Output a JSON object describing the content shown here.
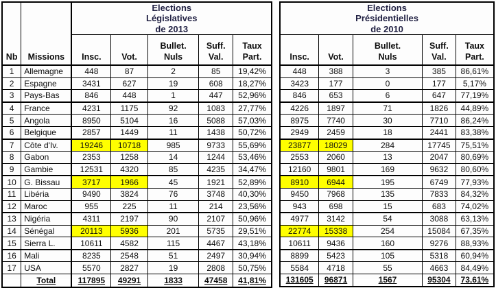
{
  "colors": {
    "highlight": "#ffff00",
    "title_text": "#222244",
    "border": "#000000",
    "text": "#0d0d0d"
  },
  "left_table": {
    "title_lines": [
      "Elections",
      "Législatives",
      "de 2013"
    ],
    "nb_label": "Nb",
    "missions_label": "Missions",
    "columns": [
      [
        "Insc."
      ],
      [
        "Vot."
      ],
      [
        "Bullet.",
        "Nuls"
      ],
      [
        "Suff.",
        "Val."
      ],
      [
        "Taux",
        "Part."
      ]
    ],
    "rows": [
      {
        "nb": "1",
        "mission": "Allemagne",
        "insc": "448",
        "vot": "87",
        "nuls": "2",
        "suff": "85",
        "taux": "19,42%",
        "highlight": false
      },
      {
        "nb": "2",
        "mission": "Espagne",
        "insc": "3431",
        "vot": "627",
        "nuls": "19",
        "suff": "608",
        "taux": "18,27%",
        "highlight": false
      },
      {
        "nb": "3",
        "mission": "Pays-Bas",
        "insc": "846",
        "vot": "448",
        "nuls": "1",
        "suff": "447",
        "taux": "52,96%",
        "highlight": false
      },
      {
        "nb": "4",
        "mission": "France",
        "insc": "4231",
        "vot": "1175",
        "nuls": "92",
        "suff": "1083",
        "taux": "27,77%",
        "highlight": false
      },
      {
        "nb": "5",
        "mission": "Angola",
        "insc": "8950",
        "vot": "5104",
        "nuls": "16",
        "suff": "5088",
        "taux": "57,03%",
        "highlight": false
      },
      {
        "nb": "6",
        "mission": "Belgique",
        "insc": "2857",
        "vot": "1449",
        "nuls": "11",
        "suff": "1438",
        "taux": "50,72%",
        "highlight": false
      },
      {
        "nb": "7",
        "mission": "Côte d'Iv.",
        "insc": "19246",
        "vot": "10718",
        "nuls": "985",
        "suff": "9733",
        "taux": "55,69%",
        "highlight": true
      },
      {
        "nb": "8",
        "mission": "Gabon",
        "insc": "2353",
        "vot": "1258",
        "nuls": "14",
        "suff": "1244",
        "taux": "53,46%",
        "highlight": false
      },
      {
        "nb": "9",
        "mission": "Gambie",
        "insc": "12531",
        "vot": "4320",
        "nuls": "85",
        "suff": "4235",
        "taux": "34,47%",
        "highlight": false
      },
      {
        "nb": "10",
        "mission": "G. Bissau",
        "insc": "3717",
        "vot": "1966",
        "nuls": "45",
        "suff": "1921",
        "taux": "52,89%",
        "highlight": true
      },
      {
        "nb": "11",
        "mission": "Libéria",
        "insc": "9490",
        "vot": "3824",
        "nuls": "76",
        "suff": "3748",
        "taux": "40,30%",
        "highlight": false
      },
      {
        "nb": "12",
        "mission": "Maroc",
        "insc": "955",
        "vot": "225",
        "nuls": "11",
        "suff": "214",
        "taux": "23,56%",
        "highlight": false
      },
      {
        "nb": "13",
        "mission": "Nigéria",
        "insc": "4311",
        "vot": "2197",
        "nuls": "90",
        "suff": "2107",
        "taux": "50,96%",
        "highlight": false
      },
      {
        "nb": "14",
        "mission": "Sénégal",
        "insc": "20113",
        "vot": "5936",
        "nuls": "201",
        "suff": "5735",
        "taux": "29,51%",
        "highlight": true
      },
      {
        "nb": "15",
        "mission": "Sierra L.",
        "insc": "10611",
        "vot": "4582",
        "nuls": "115",
        "suff": "4467",
        "taux": "43,18%",
        "highlight": false
      },
      {
        "nb": "16",
        "mission": "Mali",
        "insc": "8235",
        "vot": "2548",
        "nuls": "51",
        "suff": "2497",
        "taux": "30,94%",
        "highlight": false
      },
      {
        "nb": "17",
        "mission": "USA",
        "insc": "5570",
        "vot": "2827",
        "nuls": "19",
        "suff": "2808",
        "taux": "50,75%",
        "highlight": false
      }
    ],
    "total": {
      "label": "Total",
      "insc": "117895",
      "vot": "49291",
      "nuls": "1833",
      "suff": "47458",
      "taux": "41,81%"
    }
  },
  "right_table": {
    "title_lines": [
      "Elections",
      "Présidentielles",
      "de 2010"
    ],
    "columns": [
      [
        "Insc."
      ],
      [
        "Vot."
      ],
      [
        "Bullet.",
        "Nuls"
      ],
      [
        "Suff.",
        "Val."
      ],
      [
        "Taux",
        "Part."
      ]
    ],
    "rows": [
      {
        "insc": "448",
        "vot": "388",
        "nuls": "3",
        "suff": "385",
        "taux": "86,61%",
        "highlight": false
      },
      {
        "insc": "3423",
        "vot": "177",
        "nuls": "0",
        "suff": "177",
        "taux": "5,17%",
        "highlight": false
      },
      {
        "insc": "846",
        "vot": "653",
        "nuls": "6",
        "suff": "647",
        "taux": "77,19%",
        "highlight": false
      },
      {
        "insc": "4226",
        "vot": "1897",
        "nuls": "71",
        "suff": "1826",
        "taux": "44,89%",
        "highlight": false
      },
      {
        "insc": "8975",
        "vot": "7740",
        "nuls": "30",
        "suff": "7710",
        "taux": "86,24%",
        "highlight": false
      },
      {
        "insc": "2949",
        "vot": "2459",
        "nuls": "18",
        "suff": "2441",
        "taux": "83,38%",
        "highlight": false
      },
      {
        "insc": "23877",
        "vot": "18029",
        "nuls": "284",
        "suff": "17745",
        "taux": "75,51%",
        "highlight": true
      },
      {
        "insc": "2553",
        "vot": "2060",
        "nuls": "13",
        "suff": "2047",
        "taux": "80,69%",
        "highlight": false
      },
      {
        "insc": "12160",
        "vot": "9801",
        "nuls": "169",
        "suff": "9632",
        "taux": "80,60%",
        "highlight": false
      },
      {
        "insc": "8910",
        "vot": "6944",
        "nuls": "195",
        "suff": "6749",
        "taux": "77,93%",
        "highlight": true
      },
      {
        "insc": "9450",
        "vot": "7968",
        "nuls": "135",
        "suff": "7833",
        "taux": "84,32%",
        "highlight": false
      },
      {
        "insc": "943",
        "vot": "698",
        "nuls": "15",
        "suff": "683",
        "taux": "74,02%",
        "highlight": false
      },
      {
        "insc": "4977",
        "vot": "3142",
        "nuls": "54",
        "suff": "3088",
        "taux": "63,13%",
        "highlight": false
      },
      {
        "insc": "22774",
        "vot": "15338",
        "nuls": "254",
        "suff": "15084",
        "taux": "67,35%",
        "highlight": true
      },
      {
        "insc": "10611",
        "vot": "9436",
        "nuls": "160",
        "suff": "9276",
        "taux": "88,93%",
        "highlight": false
      },
      {
        "insc": "8899",
        "vot": "5423",
        "nuls": "105",
        "suff": "5318",
        "taux": "60,94%",
        "highlight": false
      },
      {
        "insc": "5584",
        "vot": "4718",
        "nuls": "55",
        "suff": "4663",
        "taux": "84,49%",
        "highlight": false
      }
    ],
    "total": {
      "label": "Total",
      "insc": "131605",
      "vot": "96871",
      "nuls": "1567",
      "suff": "95304",
      "taux": "73,61%"
    }
  }
}
